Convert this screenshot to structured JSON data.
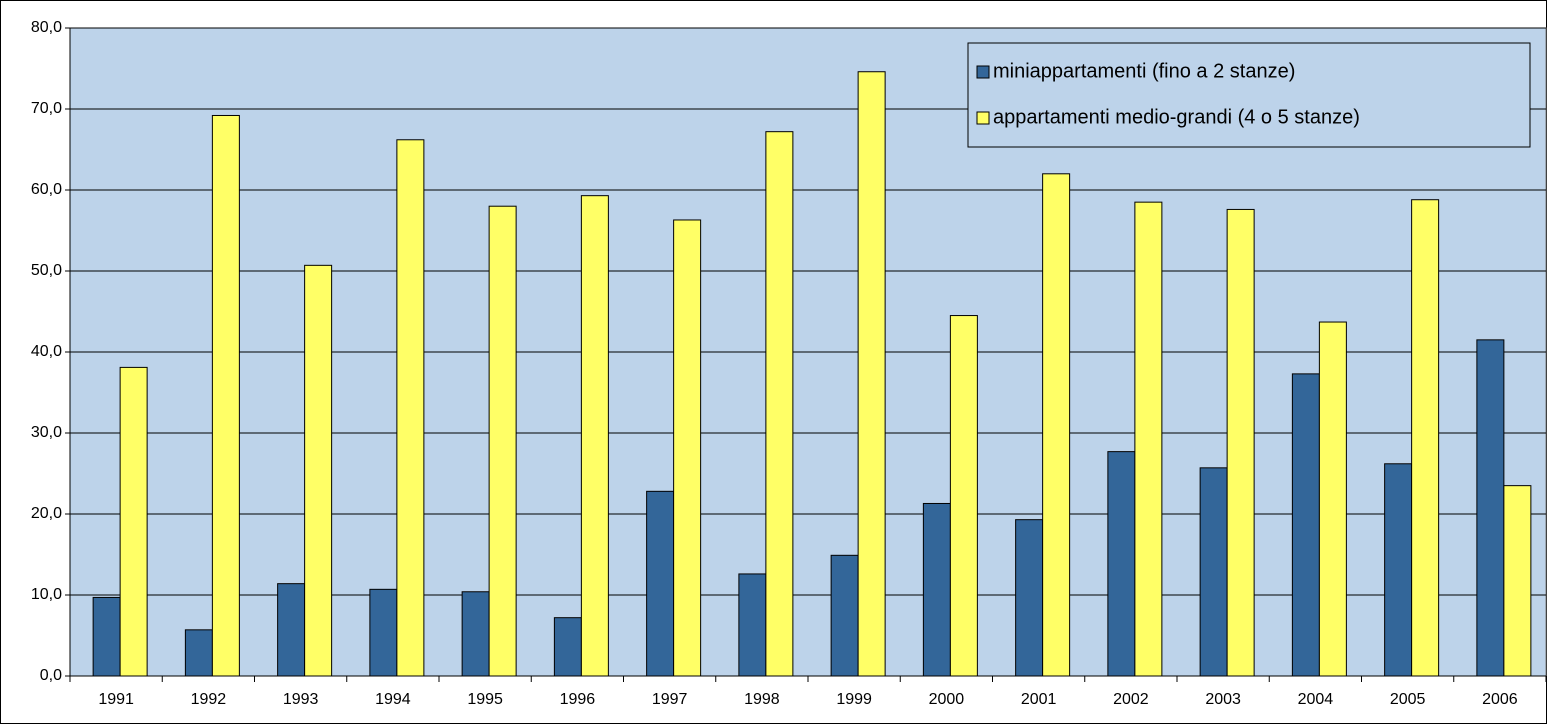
{
  "chart_data": {
    "type": "bar",
    "categories": [
      "1991",
      "1992",
      "1993",
      "1994",
      "1995",
      "1996",
      "1997",
      "1998",
      "1999",
      "2000",
      "2001",
      "2002",
      "2003",
      "2004",
      "2005",
      "2006"
    ],
    "series": [
      {
        "name": "miniappartamenti (fino a 2 stanze)",
        "color": "#336699",
        "values": [
          9.7,
          5.7,
          11.4,
          10.7,
          10.4,
          7.2,
          22.8,
          12.6,
          14.9,
          21.3,
          19.3,
          27.7,
          25.7,
          37.3,
          26.2,
          41.5
        ]
      },
      {
        "name": "appartamenti medio-grandi (4 o 5 stanze)",
        "color": "#ffff66",
        "values": [
          38.1,
          69.2,
          50.7,
          66.2,
          58.0,
          59.3,
          56.3,
          67.2,
          74.6,
          44.5,
          62.0,
          58.5,
          57.6,
          43.7,
          58.8,
          23.5
        ]
      }
    ],
    "ylim": [
      0,
      80
    ],
    "yticks": [
      {
        "value": 0,
        "label": "0,0"
      },
      {
        "value": 10,
        "label": "10,0"
      },
      {
        "value": 20,
        "label": "20,0"
      },
      {
        "value": 30,
        "label": "30,0"
      },
      {
        "value": 40,
        "label": "40,0"
      },
      {
        "value": 50,
        "label": "50,0"
      },
      {
        "value": 60,
        "label": "60,0"
      },
      {
        "value": 70,
        "label": "70,0"
      },
      {
        "value": 80,
        "label": "80,0"
      }
    ],
    "grid": true,
    "legend": "upper right"
  }
}
